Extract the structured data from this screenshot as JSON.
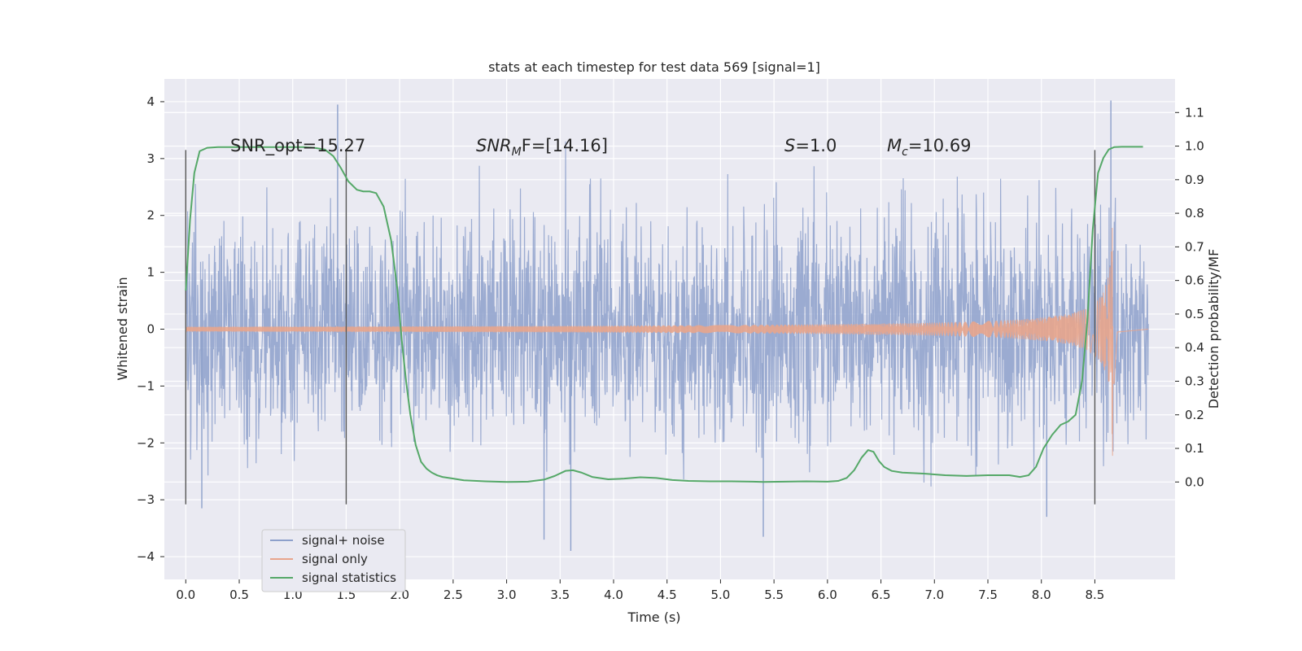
{
  "chart_data": {
    "type": "line",
    "title": "stats at each timestep for test data 569 [signal=1]",
    "xlabel": "Time (s)",
    "ylabel": "Whitened strain",
    "y2label": "Detection probability/MF",
    "xlim": [
      -0.2,
      9.25
    ],
    "ylim": [
      -4.4,
      4.4
    ],
    "y2lim": [
      -0.29,
      1.2
    ],
    "xticks": [
      "0.0",
      "0.5",
      "1.0",
      "1.5",
      "2.0",
      "2.5",
      "3.0",
      "3.5",
      "4.0",
      "4.5",
      "5.0",
      "5.5",
      "6.0",
      "6.5",
      "7.0",
      "7.5",
      "8.0",
      "8.5"
    ],
    "yticks": [
      "4",
      "3",
      "2",
      "1",
      "0",
      "−1",
      "−2",
      "−3",
      "−4"
    ],
    "y2ticks": [
      "1.1",
      "1.0",
      "0.9",
      "0.8",
      "0.7",
      "0.6",
      "0.5",
      "0.4",
      "0.3",
      "0.2",
      "0.1",
      "0.0"
    ],
    "grid": true,
    "legend_position": "lower-left",
    "colors": {
      "noise": "#8da0cb",
      "signal": "#e8a58c",
      "stats": "#55a868",
      "background": "#eaeaf2",
      "vline": "#555555"
    },
    "annotations": {
      "snr_opt": "SNR_opt=15.27",
      "snr_mf_sym": "SNR",
      "snr_mf_sub": "M",
      "snr_mf_rest": "F=[14.16]",
      "s_sym": "S",
      "s_rest": "=1.0",
      "mc_sym": "M",
      "mc_sub": "c",
      "mc_rest": "=10.69"
    },
    "vlines": [
      0.0,
      1.5,
      8.5
    ],
    "series": [
      {
        "name": "signal+ noise",
        "kind": "noise",
        "x_range": [
          0.0,
          9.0
        ],
        "std": 0.95,
        "peaks": [
          [
            1.42,
            3.95
          ],
          [
            3.6,
            -3.9
          ],
          [
            8.65,
            4.02
          ],
          [
            5.4,
            -3.65
          ],
          [
            3.35,
            -3.7
          ],
          [
            0.15,
            -3.15
          ],
          [
            8.05,
            -3.3
          ]
        ]
      },
      {
        "name": "signal only",
        "kind": "chirp",
        "x_range": [
          0.0,
          8.68
        ],
        "merger_time": 8.68,
        "peak_amplitude": 2.5
      },
      {
        "name": "signal statistics",
        "kind": "line",
        "axis": "right",
        "x": [
          0.0,
          0.04,
          0.08,
          0.13,
          0.2,
          0.3,
          0.5,
          0.8,
          1.0,
          1.1,
          1.2,
          1.3,
          1.38,
          1.45,
          1.52,
          1.6,
          1.66,
          1.72,
          1.78,
          1.85,
          1.92,
          1.98,
          2.02,
          2.06,
          2.1,
          2.15,
          2.2,
          2.25,
          2.3,
          2.35,
          2.4,
          2.5,
          2.6,
          2.8,
          3.0,
          3.2,
          3.35,
          3.45,
          3.55,
          3.62,
          3.7,
          3.8,
          3.95,
          4.1,
          4.25,
          4.4,
          4.55,
          4.7,
          4.9,
          5.1,
          5.3,
          5.4,
          5.6,
          5.8,
          6.0,
          6.1,
          6.18,
          6.25,
          6.32,
          6.38,
          6.43,
          6.48,
          6.53,
          6.6,
          6.7,
          6.9,
          7.1,
          7.3,
          7.5,
          7.7,
          7.8,
          7.88,
          7.95,
          8.02,
          8.1,
          8.18,
          8.25,
          8.32,
          8.38,
          8.43,
          8.48,
          8.53,
          8.58,
          8.63,
          8.68,
          8.75,
          8.85,
          8.95
        ],
        "y": [
          0.57,
          0.78,
          0.92,
          0.985,
          0.995,
          0.997,
          0.997,
          0.997,
          0.997,
          0.997,
          0.995,
          0.99,
          0.97,
          0.935,
          0.895,
          0.87,
          0.865,
          0.865,
          0.86,
          0.82,
          0.72,
          0.57,
          0.42,
          0.3,
          0.2,
          0.11,
          0.06,
          0.04,
          0.028,
          0.02,
          0.015,
          0.01,
          0.005,
          0.002,
          0.0,
          0.001,
          0.007,
          0.018,
          0.033,
          0.035,
          0.028,
          0.015,
          0.008,
          0.01,
          0.014,
          0.012,
          0.006,
          0.003,
          0.002,
          0.002,
          0.001,
          0.0,
          0.001,
          0.002,
          0.001,
          0.003,
          0.012,
          0.035,
          0.073,
          0.095,
          0.09,
          0.063,
          0.045,
          0.033,
          0.028,
          0.025,
          0.02,
          0.018,
          0.02,
          0.02,
          0.015,
          0.02,
          0.045,
          0.1,
          0.14,
          0.17,
          0.18,
          0.2,
          0.3,
          0.48,
          0.75,
          0.92,
          0.965,
          0.99,
          0.997,
          0.998,
          0.998,
          0.998
        ]
      }
    ]
  }
}
